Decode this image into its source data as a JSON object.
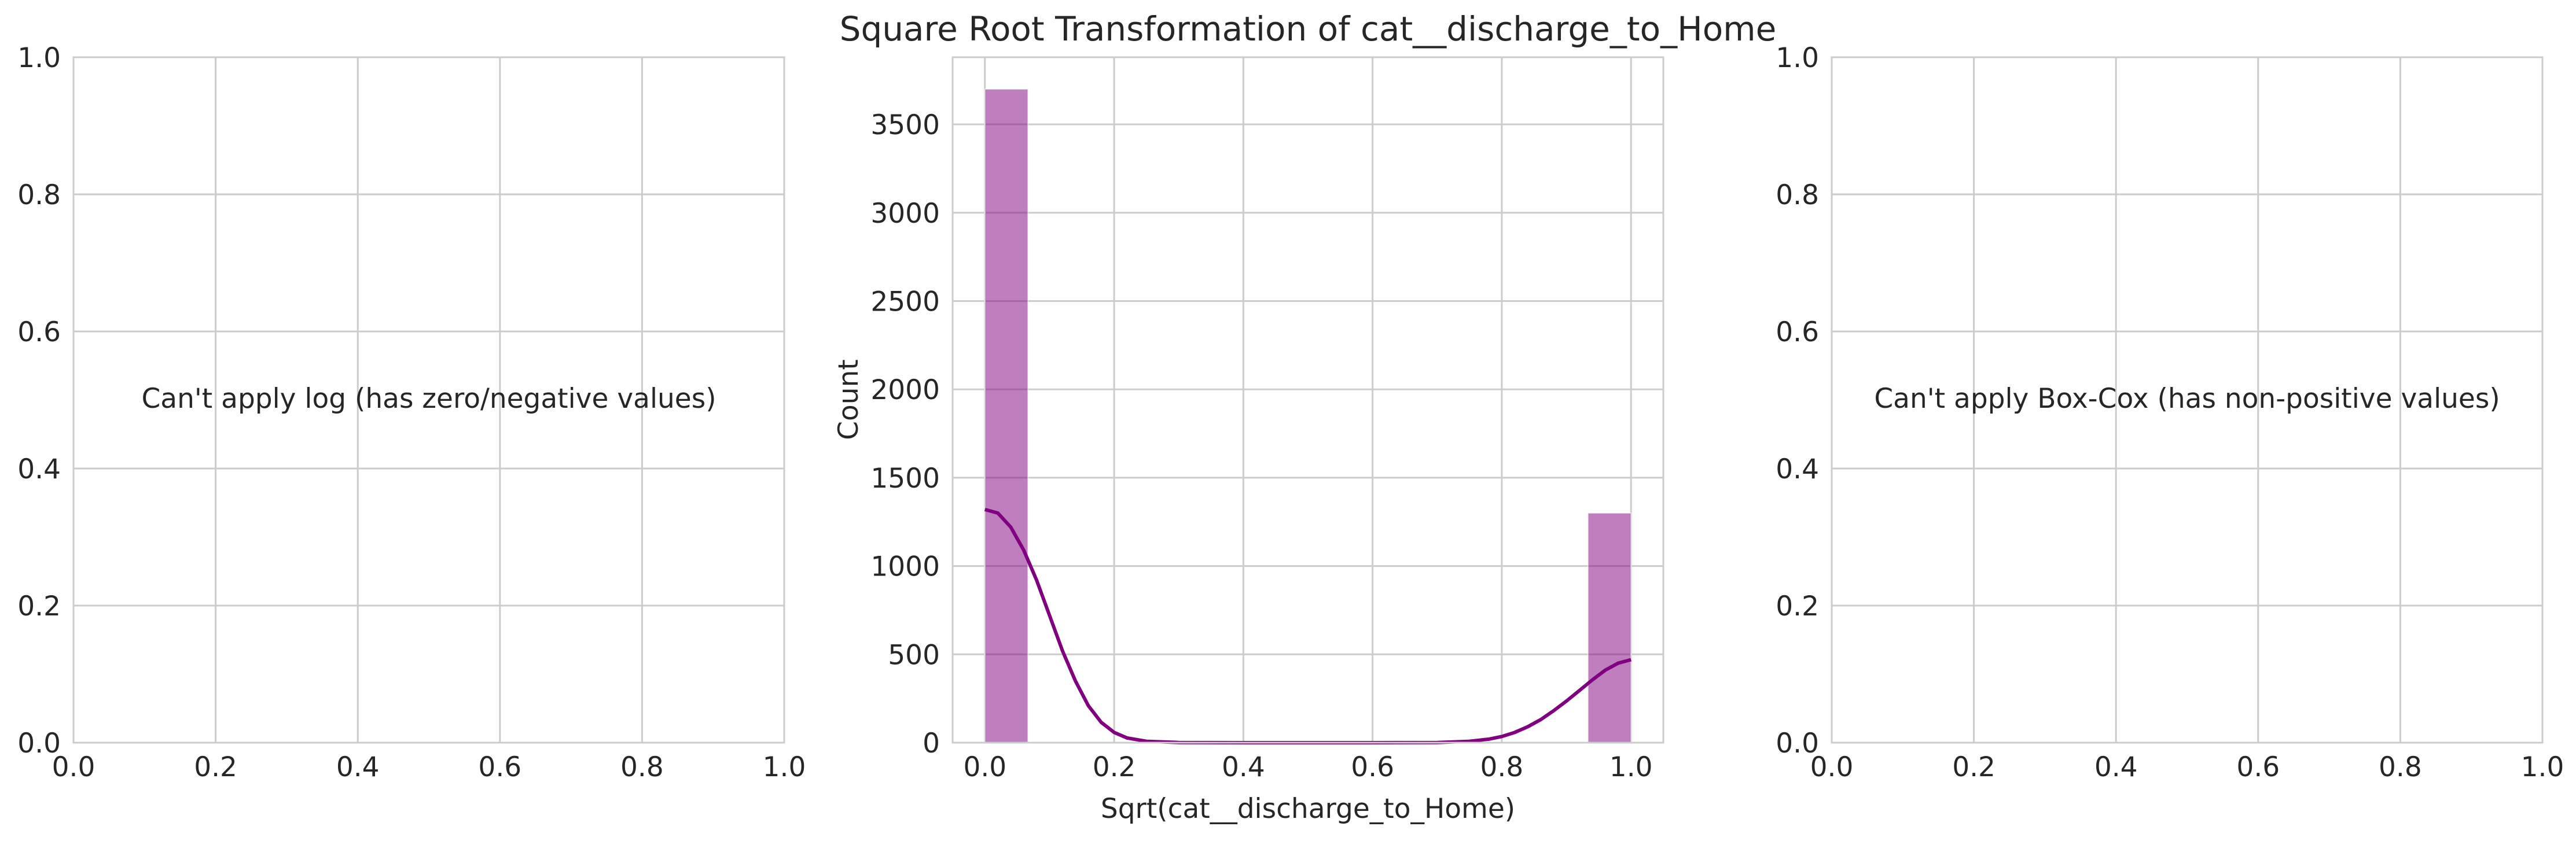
{
  "chart_data": [
    {
      "type": "empty",
      "annotation": "Can't apply log (has zero/negative values)",
      "xlim": [
        0,
        1
      ],
      "ylim": [
        0,
        1
      ],
      "xticks": [
        "0.0",
        "0.2",
        "0.4",
        "0.6",
        "0.8",
        "1.0"
      ],
      "yticks": [
        "0.0",
        "0.2",
        "0.4",
        "0.6",
        "0.8",
        "1.0"
      ],
      "grid": true
    },
    {
      "type": "bar",
      "title": "Square Root Transformation of cat__discharge_to_Home",
      "xlabel": "Sqrt(cat__discharge_to_Home)",
      "ylabel": "Count",
      "xlim": [
        -0.05,
        1.05
      ],
      "ylim": [
        0,
        3880
      ],
      "xticks": [
        "0.0",
        "0.2",
        "0.4",
        "0.6",
        "0.8",
        "1.0"
      ],
      "yticks": [
        "0",
        "500",
        "1000",
        "1500",
        "2000",
        "2500",
        "3000",
        "3500"
      ],
      "grid": true,
      "color": "#800080",
      "bins": [
        {
          "x0": 0.0,
          "x1": 0.0667,
          "count": 3700
        },
        {
          "x0": 0.9333,
          "x1": 1.0,
          "count": 1300
        }
      ],
      "kde": {
        "x": [
          0.0,
          0.02,
          0.04,
          0.06,
          0.08,
          0.1,
          0.12,
          0.14,
          0.16,
          0.18,
          0.2,
          0.22,
          0.25,
          0.3,
          0.4,
          0.5,
          0.6,
          0.7,
          0.75,
          0.78,
          0.8,
          0.82,
          0.84,
          0.86,
          0.88,
          0.9,
          0.92,
          0.94,
          0.96,
          0.98,
          1.0
        ],
        "y": [
          1320,
          1300,
          1220,
          1090,
          920,
          720,
          520,
          350,
          210,
          115,
          58,
          27,
          8,
          1,
          0,
          0,
          0,
          1,
          8,
          20,
          35,
          58,
          90,
          130,
          180,
          235,
          295,
          355,
          410,
          450,
          470
        ]
      }
    },
    {
      "type": "empty",
      "annotation": "Can't apply Box-Cox (has non-positive values)",
      "xlim": [
        0,
        1
      ],
      "ylim": [
        0,
        1
      ],
      "xticks": [
        "0.0",
        "0.2",
        "0.4",
        "0.6",
        "0.8",
        "1.0"
      ],
      "yticks": [
        "0.0",
        "0.2",
        "0.4",
        "0.6",
        "0.8",
        "1.0"
      ],
      "grid": true
    }
  ]
}
